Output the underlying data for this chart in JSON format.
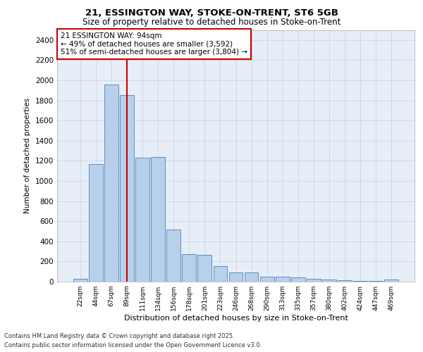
{
  "title_line1": "21, ESSINGTON WAY, STOKE-ON-TRENT, ST6 5GB",
  "title_line2": "Size of property relative to detached houses in Stoke-on-Trent",
  "xlabel": "Distribution of detached houses by size in Stoke-on-Trent",
  "ylabel": "Number of detached properties",
  "categories": [
    "22sqm",
    "44sqm",
    "67sqm",
    "89sqm",
    "111sqm",
    "134sqm",
    "156sqm",
    "178sqm",
    "201sqm",
    "223sqm",
    "246sqm",
    "268sqm",
    "290sqm",
    "313sqm",
    "335sqm",
    "357sqm",
    "380sqm",
    "402sqm",
    "424sqm",
    "447sqm",
    "469sqm"
  ],
  "values": [
    30,
    1170,
    1960,
    1850,
    1230,
    1240,
    515,
    270,
    265,
    155,
    90,
    90,
    50,
    50,
    40,
    25,
    20,
    15,
    10,
    5,
    20
  ],
  "bar_color": "#b8d0ea",
  "bar_edge_color": "#5b8ec4",
  "bg_color": "#e8eef8",
  "grid_color": "#d0d8e8",
  "red_line_index": 3,
  "annotation_text": "21 ESSINGTON WAY: 94sqm\n← 49% of detached houses are smaller (3,592)\n51% of semi-detached houses are larger (3,804) →",
  "annotation_box_color": "#ffffff",
  "annotation_box_edge": "#cc0000",
  "red_line_color": "#cc0000",
  "ylim": [
    0,
    2500
  ],
  "yticks": [
    0,
    200,
    400,
    600,
    800,
    1000,
    1200,
    1400,
    1600,
    1800,
    2000,
    2200,
    2400
  ],
  "footnote1": "Contains HM Land Registry data © Crown copyright and database right 2025.",
  "footnote2": "Contains public sector information licensed under the Open Government Licence v3.0."
}
